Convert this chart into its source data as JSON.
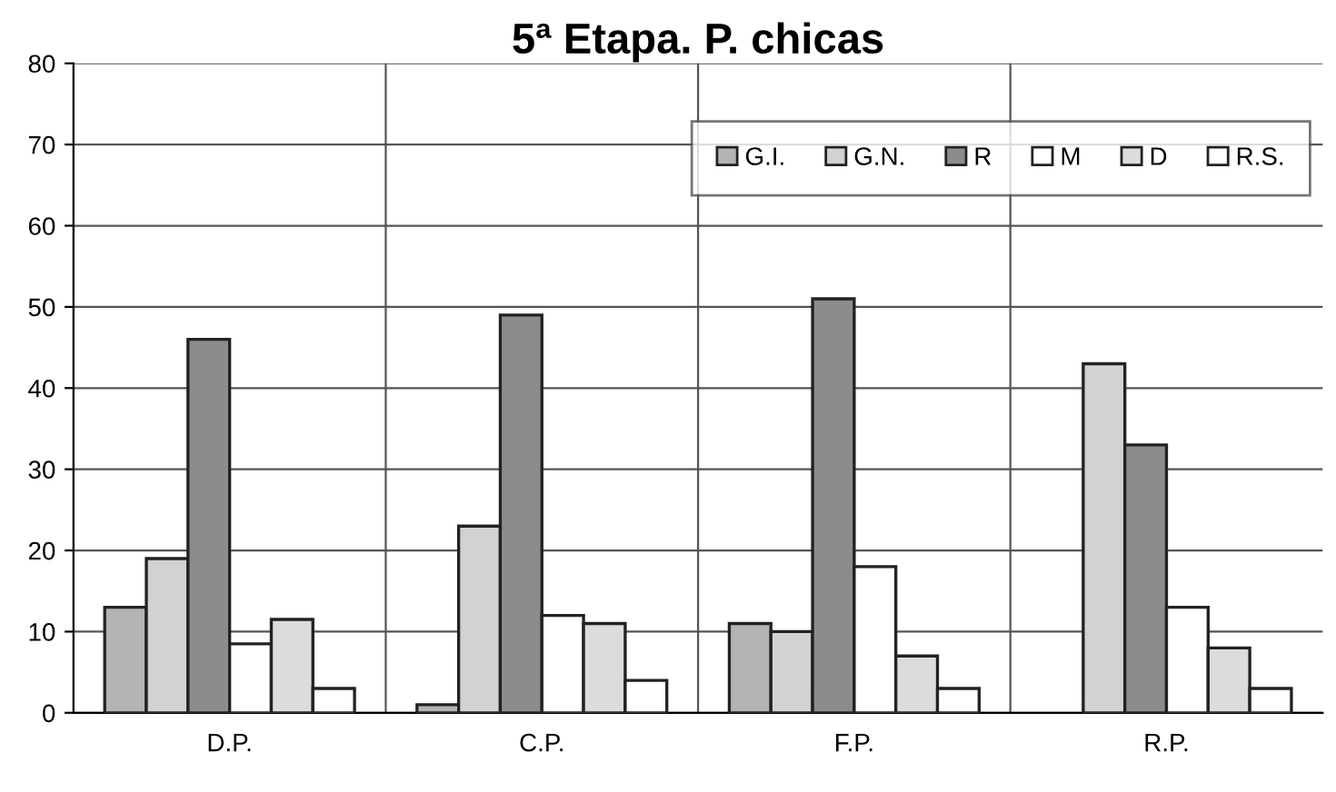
{
  "chart_data": {
    "type": "bar",
    "title": "5ª Etapa. P. chicas",
    "categories": [
      "D.P.",
      "C.P.",
      "F.P.",
      "R.P."
    ],
    "series": [
      {
        "name": "G.I.",
        "color": "#b4b4b4",
        "values": [
          13,
          1,
          11,
          null
        ]
      },
      {
        "name": "G.N.",
        "color": "#d2d2d2",
        "values": [
          19,
          23,
          10,
          43
        ]
      },
      {
        "name": "R",
        "color": "#8c8c8c",
        "values": [
          46,
          49,
          51,
          33
        ]
      },
      {
        "name": "M",
        "color": "#ffffff",
        "values": [
          8.5,
          12,
          18,
          13
        ]
      },
      {
        "name": "D",
        "color": "#dcdcdc",
        "values": [
          11.5,
          11,
          7,
          8
        ]
      },
      {
        "name": "R.S.",
        "color": "#ffffff",
        "values": [
          3,
          4,
          3,
          3
        ]
      }
    ],
    "ylim": [
      0,
      80
    ],
    "yticks": [
      0,
      10,
      20,
      30,
      40,
      50,
      60,
      70,
      80
    ],
    "grid": true,
    "legend": "top right"
  }
}
